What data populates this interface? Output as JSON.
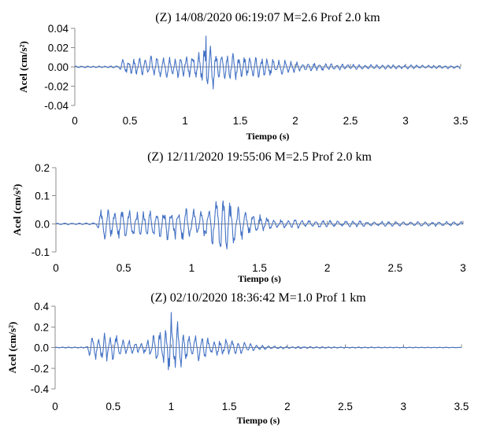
{
  "chart_data": [
    {
      "type": "line",
      "title": "(Z) 14/08/2020   06:19:07   M=2.6   Prof 2.0 km",
      "xlabel": "Tiempo (s)",
      "ylabel": "Acel (cm/s²)",
      "xlim": [
        0,
        3.5
      ],
      "ylim": [
        -0.04,
        0.04
      ],
      "xticks": [
        0,
        0.5,
        1,
        1.5,
        2,
        2.5,
        3,
        3.5
      ],
      "xtick_labels": [
        "0",
        "0.5",
        "1",
        "1.5",
        "2",
        "2.5",
        "3",
        "3.5"
      ],
      "yticks": [
        -0.04,
        -0.02,
        0,
        0.02,
        0.04
      ],
      "ytick_labels": [
        "-0.04",
        "-0.02",
        "0.00",
        "0.02",
        "0.04"
      ],
      "grid": false,
      "line_color": "#4472c4",
      "envelope": [
        [
          0,
          0.001
        ],
        [
          0.4,
          0.0012
        ],
        [
          0.43,
          0.008
        ],
        [
          0.6,
          0.011
        ],
        [
          0.8,
          0.012
        ],
        [
          1.0,
          0.012
        ],
        [
          1.12,
          0.018
        ],
        [
          1.2,
          0.032
        ],
        [
          1.3,
          0.018
        ],
        [
          1.5,
          0.013
        ],
        [
          1.7,
          0.011
        ],
        [
          1.9,
          0.008
        ],
        [
          2.2,
          0.004
        ],
        [
          2.6,
          0.0028
        ],
        [
          3.0,
          0.0022
        ],
        [
          3.5,
          0.0018
        ]
      ],
      "series": [
        {
          "sample_interval": 0.005,
          "peak": 0.032,
          "peak_time": 1.19
        }
      ]
    },
    {
      "type": "line",
      "title": "(Z) 12/11/2020   19:55:06   M=2.5  Prof 2.0 km",
      "xlabel": "Tiempo (s)",
      "ylabel": "Acel (cm/s²)",
      "xlim": [
        0,
        3
      ],
      "ylim": [
        -0.1,
        0.2
      ],
      "xticks": [
        0,
        0.5,
        1,
        1.5,
        2,
        2.5,
        3
      ],
      "xtick_labels": [
        "0",
        "0.5",
        "1",
        "1.5",
        "2",
        "2.5",
        "3"
      ],
      "yticks": [
        -0.1,
        0,
        0.1,
        0.2
      ],
      "ytick_labels": [
        "-0.1",
        "0.0",
        "0.1",
        "0.2"
      ],
      "grid": false,
      "line_color": "#4472c4",
      "envelope": [
        [
          0,
          0.003
        ],
        [
          0.3,
          0.004
        ],
        [
          0.33,
          0.07
        ],
        [
          0.5,
          0.055
        ],
        [
          0.7,
          0.05
        ],
        [
          0.9,
          0.07
        ],
        [
          1.05,
          0.05
        ],
        [
          1.22,
          0.11
        ],
        [
          1.35,
          0.06
        ],
        [
          1.5,
          0.035
        ],
        [
          1.6,
          0.02
        ],
        [
          2.0,
          0.013
        ],
        [
          2.5,
          0.01
        ],
        [
          3.0,
          0.008
        ]
      ],
      "series": [
        {
          "sample_interval": 0.004,
          "peak": 0.12,
          "peak_time": 1.23
        }
      ]
    },
    {
      "type": "line",
      "title": "(Z) 02/10/2020   18:36:42   M=1.0   Prof 1 km",
      "xlabel": "Tiempo (s)",
      "ylabel": "Acel (cm/s²)",
      "xlim": [
        0,
        3.5
      ],
      "ylim": [
        -0.4,
        0.4
      ],
      "xticks": [
        0,
        0.5,
        1,
        1.5,
        2,
        2.5,
        3,
        3.5
      ],
      "xtick_labels": [
        "0",
        "0.5",
        "1",
        "1.5",
        "2",
        "2.5",
        "3",
        "3.5"
      ],
      "yticks": [
        -0.4,
        -0.2,
        0,
        0.2,
        0.4
      ],
      "ytick_labels": [
        "-0.4",
        "-0.2",
        "0.0",
        "0.2",
        "0.4"
      ],
      "grid": false,
      "line_color": "#4472c4",
      "envelope": [
        [
          0,
          0.005
        ],
        [
          0.27,
          0.006
        ],
        [
          0.3,
          0.13
        ],
        [
          0.45,
          0.16
        ],
        [
          0.6,
          0.08
        ],
        [
          0.75,
          0.06
        ],
        [
          0.9,
          0.18
        ],
        [
          1.0,
          0.32
        ],
        [
          1.1,
          0.2
        ],
        [
          1.3,
          0.1
        ],
        [
          1.5,
          0.08
        ],
        [
          1.7,
          0.05
        ],
        [
          1.75,
          0.025
        ],
        [
          2.0,
          0.012
        ],
        [
          2.5,
          0.006
        ],
        [
          3.0,
          0.004
        ],
        [
          3.5,
          0.003
        ]
      ],
      "series": [
        {
          "sample_interval": 0.005,
          "peak": 0.34,
          "peak_time": 1.0
        }
      ]
    }
  ]
}
